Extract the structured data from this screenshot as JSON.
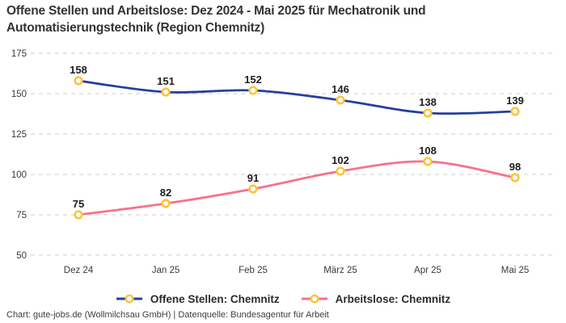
{
  "title": "Offene Stellen und Arbeitslose: Dez 2024 - Mai 2025 für Mechatronik und Automatisierungstechnik (Region Chemnitz)",
  "footer": "Chart: gute-jobs.de (Wollmilchsau GmbH) | Datenquelle: Bundesagentur für Arbeit",
  "colors": {
    "background": "#ffffff",
    "title_text": "#333333",
    "grid": "#cccccc",
    "tick_text": "#3a3a3a",
    "value_label_text": "#1d1d1d",
    "marker_ring": "#fcc43e",
    "marker_fill": "#ffffff",
    "series_blue": "#24409e",
    "series_pink": "#f9718c"
  },
  "chart_data": {
    "type": "line",
    "title": "Offene Stellen und Arbeitslose: Dez 2024 - Mai 2025 für Mechatronik und Automatisierungstechnik (Region Chemnitz)",
    "categories": [
      "Dez 24",
      "Jan 25",
      "Feb 25",
      "März 25",
      "Apr 25",
      "Mai 25"
    ],
    "series": [
      {
        "name": "Offene Stellen: Chemnitz",
        "color": "#24409e",
        "values": [
          158,
          151,
          152,
          146,
          138,
          139
        ]
      },
      {
        "name": "Arbeitslose: Chemnitz",
        "color": "#f9718c",
        "values": [
          75,
          82,
          91,
          102,
          108,
          98
        ]
      }
    ],
    "ylim": [
      50,
      175
    ],
    "yticks": [
      50,
      75,
      100,
      125,
      150,
      175
    ],
    "grid": "horizontal-dashed",
    "legend_position": "bottom",
    "marker": "circle-yellow-ring-white-fill",
    "point_labels_visible": true
  }
}
